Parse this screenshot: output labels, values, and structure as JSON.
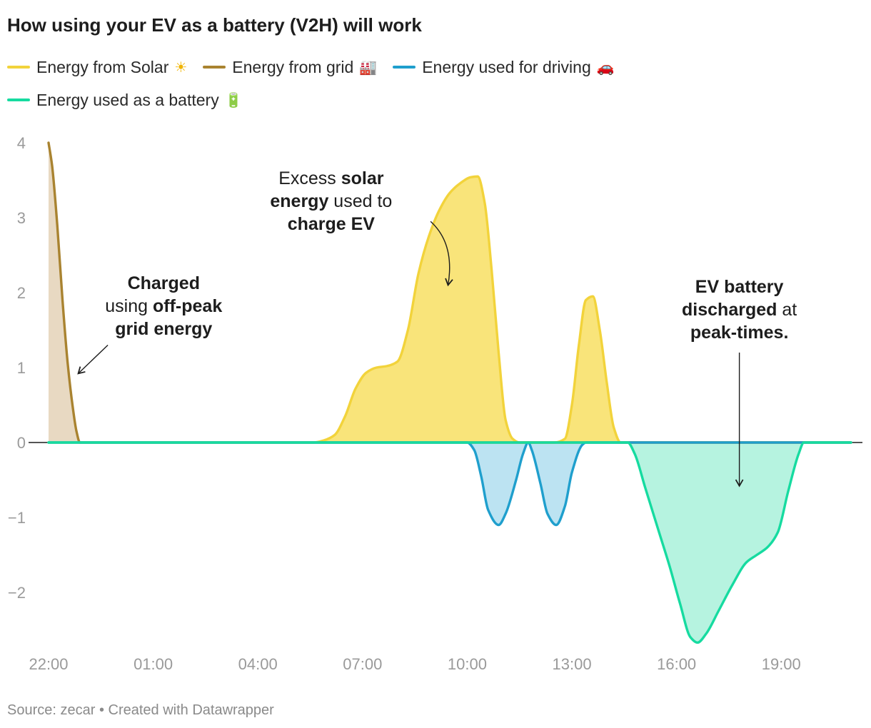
{
  "title": "How using your EV as a battery (V2H) will work",
  "legend": [
    {
      "label": "Energy from Solar",
      "icon": "sun-icon",
      "glyph": "☀",
      "color": "#f2d33b"
    },
    {
      "label": "Energy from grid",
      "icon": "factory-icon",
      "glyph": "🏭",
      "color": "#a98330"
    },
    {
      "label": "Energy used for driving",
      "icon": "car-icon",
      "glyph": "🚗",
      "color": "#1f9fcd"
    },
    {
      "label": "Energy used as a battery",
      "icon": "battery-icon",
      "glyph": "🔋",
      "color": "#16dba0"
    }
  ],
  "source": "Source: zecar • Created with Datawrapper",
  "chart_data": {
    "type": "area",
    "x_unit": "hours (axis starts 22:00)",
    "xlim": [
      22,
      45
    ],
    "ylim": [
      -2.7,
      4.0
    ],
    "x_ticks": [
      {
        "x": 22,
        "label": "22:00"
      },
      {
        "x": 25,
        "label": "01:00"
      },
      {
        "x": 28,
        "label": "04:00"
      },
      {
        "x": 31,
        "label": "07:00"
      },
      {
        "x": 34,
        "label": "10:00"
      },
      {
        "x": 37,
        "label": "13:00"
      },
      {
        "x": 40,
        "label": "16:00"
      },
      {
        "x": 43,
        "label": "19:00"
      }
    ],
    "y_ticks": [
      {
        "y": 4,
        "label": "4"
      },
      {
        "y": 3,
        "label": "3"
      },
      {
        "y": 2,
        "label": "2"
      },
      {
        "y": 1,
        "label": "1"
      },
      {
        "y": 0,
        "label": "0"
      },
      {
        "y": -1,
        "label": "−1"
      },
      {
        "y": -2,
        "label": "−2"
      }
    ],
    "grid": false,
    "series": [
      {
        "name": "Energy from Solar",
        "color": "#f2d33b",
        "fill": "#f9e47a",
        "points": [
          [
            22,
            0
          ],
          [
            29.6,
            0
          ],
          [
            29.9,
            0.03
          ],
          [
            30.2,
            0.1
          ],
          [
            30.5,
            0.35
          ],
          [
            30.8,
            0.72
          ],
          [
            31.1,
            0.93
          ],
          [
            31.4,
            1.0
          ],
          [
            31.7,
            1.02
          ],
          [
            32.0,
            1.08
          ],
          [
            32.3,
            1.5
          ],
          [
            32.6,
            2.25
          ],
          [
            32.9,
            2.75
          ],
          [
            33.2,
            3.1
          ],
          [
            33.5,
            3.33
          ],
          [
            33.8,
            3.46
          ],
          [
            34.1,
            3.54
          ],
          [
            34.3,
            3.55
          ],
          [
            34.5,
            3.2
          ],
          [
            34.7,
            2.3
          ],
          [
            34.9,
            1.2
          ],
          [
            35.1,
            0.3
          ],
          [
            35.3,
            0.05
          ],
          [
            35.5,
            0
          ],
          [
            36.5,
            0
          ],
          [
            36.8,
            0.05
          ],
          [
            37.0,
            0.5
          ],
          [
            37.2,
            1.3
          ],
          [
            37.4,
            1.9
          ],
          [
            37.6,
            1.95
          ],
          [
            37.8,
            1.5
          ],
          [
            38.0,
            0.8
          ],
          [
            38.2,
            0.2
          ],
          [
            38.4,
            0
          ],
          [
            45,
            0
          ]
        ]
      },
      {
        "name": "Energy from grid",
        "color": "#a98330",
        "fill": "#e8d9c2",
        "points": [
          [
            22,
            4.0
          ],
          [
            22.1,
            3.7
          ],
          [
            22.25,
            2.9
          ],
          [
            22.4,
            1.9
          ],
          [
            22.55,
            1.05
          ],
          [
            22.7,
            0.45
          ],
          [
            22.8,
            0.15
          ],
          [
            22.9,
            0
          ],
          [
            45,
            0
          ]
        ]
      },
      {
        "name": "Energy used for driving",
        "color": "#1f9fcd",
        "fill": "#bce3f2",
        "points": [
          [
            22,
            0
          ],
          [
            34.0,
            0
          ],
          [
            34.2,
            -0.1
          ],
          [
            34.4,
            -0.45
          ],
          [
            34.6,
            -0.9
          ],
          [
            34.9,
            -1.1
          ],
          [
            35.1,
            -0.95
          ],
          [
            35.4,
            -0.5
          ],
          [
            35.6,
            -0.15
          ],
          [
            35.75,
            0
          ],
          [
            35.85,
            -0.1
          ],
          [
            36.1,
            -0.55
          ],
          [
            36.3,
            -0.95
          ],
          [
            36.55,
            -1.1
          ],
          [
            36.8,
            -0.85
          ],
          [
            37.0,
            -0.4
          ],
          [
            37.3,
            -0.03
          ],
          [
            37.4,
            0
          ],
          [
            45,
            0
          ]
        ]
      },
      {
        "name": "Energy used as a battery",
        "color": "#16dba0",
        "fill": "#b6f3e0",
        "points": [
          [
            22,
            0
          ],
          [
            38.6,
            0
          ],
          [
            38.8,
            -0.15
          ],
          [
            39.1,
            -0.6
          ],
          [
            39.5,
            -1.2
          ],
          [
            39.8,
            -1.65
          ],
          [
            40.1,
            -2.15
          ],
          [
            40.4,
            -2.6
          ],
          [
            40.6,
            -2.67
          ],
          [
            40.85,
            -2.55
          ],
          [
            41.2,
            -2.25
          ],
          [
            41.6,
            -1.9
          ],
          [
            42.0,
            -1.6
          ],
          [
            42.3,
            -1.5
          ],
          [
            42.6,
            -1.4
          ],
          [
            42.9,
            -1.2
          ],
          [
            43.2,
            -0.65
          ],
          [
            43.5,
            -0.15
          ],
          [
            43.65,
            0
          ],
          [
            45,
            0
          ]
        ]
      }
    ],
    "annotations": [
      {
        "lines": [
          [
            {
              "t": "Charged",
              "b": true
            }
          ],
          [
            {
              "t": "using ",
              "b": false
            },
            {
              "t": "off-peak",
              "b": true
            }
          ],
          [
            {
              "t": "grid energy",
              "b": true
            }
          ]
        ],
        "x": 25.3,
        "y": 2.05,
        "arrow_from": [
          23.7,
          1.3
        ],
        "arrow_to": [
          22.85,
          0.92
        ],
        "curve": 0
      },
      {
        "lines": [
          [
            {
              "t": "Excess ",
              "b": false
            },
            {
              "t": "solar",
              "b": true
            }
          ],
          [
            {
              "t": "energy",
              "b": true
            },
            {
              "t": " used to",
              "b": false
            }
          ],
          [
            {
              "t": "charge EV",
              "b": true
            }
          ]
        ],
        "x": 30.1,
        "y": 3.45,
        "arrow_from": [
          32.95,
          2.95
        ],
        "arrow_to": [
          33.45,
          2.1
        ],
        "curve": 0.45
      },
      {
        "lines": [
          [
            {
              "t": "EV battery",
              "b": true
            }
          ],
          [
            {
              "t": "discharged",
              "b": true
            },
            {
              "t": " at",
              "b": false
            }
          ],
          [
            {
              "t": "peak-times.",
              "b": true
            }
          ]
        ],
        "x": 41.8,
        "y": 2.0,
        "arrow_from": [
          41.8,
          1.2
        ],
        "arrow_to": [
          41.8,
          -0.58
        ],
        "curve": 0
      }
    ]
  }
}
